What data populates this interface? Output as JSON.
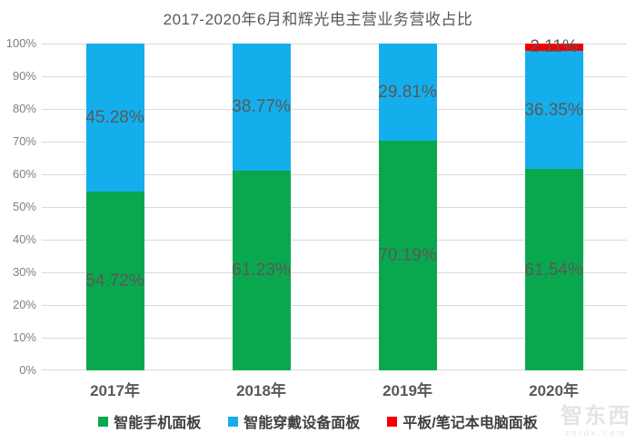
{
  "title": "2017-2020年6月和辉光电主营业务营收占比",
  "watermark": {
    "logo": "智东西",
    "domain": "zhidx.com"
  },
  "colors": {
    "smartphone_green": "#0AA84E",
    "wearable_blue": "#14AEEC",
    "tablet_red": "#F20000",
    "gridline": "#D9D9D9",
    "axis_text": "#7F7F7F",
    "label_text": "#595959",
    "legend_text": "#404040"
  },
  "chart_data": {
    "type": "bar",
    "stacked": true,
    "title": "2017-2020年6月和辉光电主营业务营收占比",
    "categories": [
      "2017年",
      "2018年",
      "2019年",
      "2020年"
    ],
    "series": [
      {
        "name": "智能手机面板",
        "color": "#0AA84E",
        "values": [
          54.72,
          61.23,
          70.19,
          61.54
        ]
      },
      {
        "name": "智能穿戴设备面板",
        "color": "#14AEEC",
        "values": [
          45.28,
          38.77,
          29.81,
          36.35
        ]
      },
      {
        "name": "平板/笔记本电脑面板",
        "color": "#F20000",
        "values": [
          0,
          0,
          0,
          2.11
        ]
      }
    ],
    "y_ticks": [
      "0%",
      "10%",
      "20%",
      "30%",
      "40%",
      "50%",
      "60%",
      "70%",
      "80%",
      "90%",
      "100%"
    ],
    "ylim": [
      0,
      100
    ],
    "grid": true,
    "legend_position": "bottom",
    "label_format": "percent-2dp",
    "data_labels_shown": true
  }
}
